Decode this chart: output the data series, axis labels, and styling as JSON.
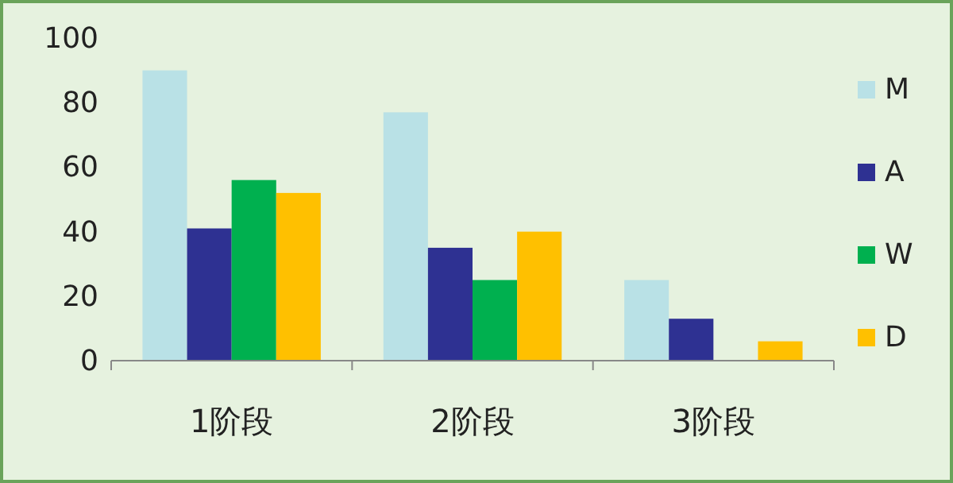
{
  "chart_data": {
    "type": "bar",
    "categories": [
      "1阶段",
      "2阶段",
      "3阶段"
    ],
    "series": [
      {
        "name": "M",
        "color": "#b9e1e6",
        "values": [
          90,
          77,
          25
        ]
      },
      {
        "name": "A",
        "color": "#2e3192",
        "values": [
          41,
          35,
          13
        ]
      },
      {
        "name": "W",
        "color": "#00b04f",
        "values": [
          56,
          25,
          null
        ]
      },
      {
        "name": "D",
        "color": "#ffc000",
        "values": [
          52,
          40,
          6
        ]
      }
    ],
    "ylim": [
      0,
      100
    ],
    "yticks": [
      0,
      20,
      40,
      60,
      80,
      100
    ],
    "grid": false,
    "legend": "right"
  }
}
